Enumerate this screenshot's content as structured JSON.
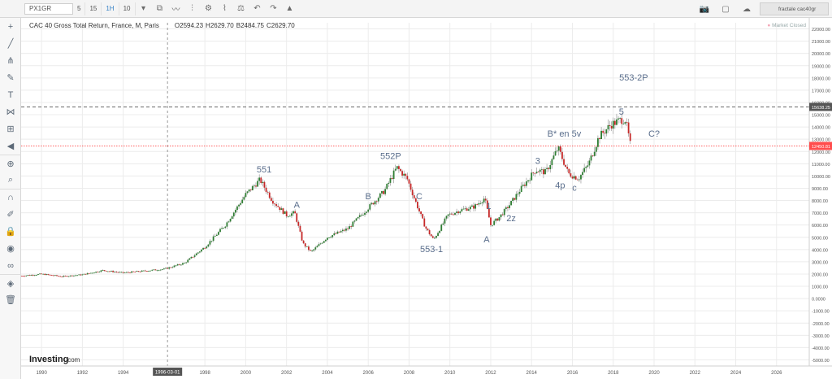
{
  "toolbar": {
    "symbol": "PX1GR",
    "intervals": [
      "5",
      "15",
      "1H",
      "1D"
    ],
    "active_interval": "1H",
    "tick_count": "10",
    "right_user": "fractale cac40gr"
  },
  "legend": {
    "title": "CAC 40 Gross Total Return, France, M, Paris",
    "open": "O2594.23",
    "high": "H2629.70",
    "low": "B2484.75",
    "close": "C2629.70",
    "market_status": "Market Closed"
  },
  "crosshair_label": "1996-03-01",
  "watermark": "Investing",
  "watermark_suffix": ".com",
  "colors": {
    "up": "#2e7d32",
    "down": "#c62828",
    "price_line": "#ff4d4d",
    "grid": "#ececec",
    "annotation": "#5a6e8c"
  },
  "chart_data": {
    "type": "candlestick",
    "x_ticks": [
      "1990",
      "1992",
      "1994",
      "1996-03-01",
      "1998",
      "2000",
      "2002",
      "2004",
      "2006",
      "2008",
      "2010",
      "2012",
      "2014",
      "2016",
      "2018",
      "2020",
      "2022",
      "2024",
      "2026"
    ],
    "ylim": [
      -5500,
      22500
    ],
    "y_ticks": [
      22000,
      21000,
      20000,
      19000,
      18000,
      17000,
      16000,
      15000,
      14000,
      13000,
      12000,
      11000,
      10000,
      9000,
      8000,
      7000,
      6000,
      5000,
      4000,
      3000,
      2000,
      1000,
      0,
      -1000,
      -2000,
      -3000,
      -4000,
      -5000
    ],
    "y_tick_labels": [
      "22000.00",
      "21000.00",
      "20000.00",
      "19000.00",
      "18000.00",
      "17000.00",
      "16000.00",
      "15000.00",
      "14000.00",
      "13000.00",
      "12000.00",
      "11000.00",
      "10000.00",
      "9000.00",
      "8000.00",
      "7000.00",
      "6000.00",
      "5000.00",
      "4000.00",
      "3000.00",
      "2000.00",
      "1000.00",
      "0.0000",
      "-1000.00",
      "-2000.00",
      "-3000.00",
      "-4000.00",
      "-5000.00"
    ],
    "price_markers": [
      {
        "value": 15638.25,
        "label": "15638.25",
        "style": "dashed",
        "color": "#555555"
      },
      {
        "value": 12450.81,
        "label": "12450.81",
        "style": "dotted",
        "color": "#ff4d4d"
      }
    ],
    "price_path": [
      [
        1989.0,
        1850
      ],
      [
        1990.0,
        2000
      ],
      [
        1991.0,
        1800
      ],
      [
        1992.0,
        1950
      ],
      [
        1993.0,
        2300
      ],
      [
        1994.0,
        2100
      ],
      [
        1995.0,
        2250
      ],
      [
        1996.0,
        2400
      ],
      [
        1997.0,
        2900
      ],
      [
        1998.0,
        4200
      ],
      [
        1999.0,
        6000
      ],
      [
        2000.0,
        8500
      ],
      [
        2000.7,
        9700
      ],
      [
        2001.3,
        8000
      ],
      [
        2002.0,
        6800
      ],
      [
        2002.4,
        7000
      ],
      [
        2002.8,
        4500
      ],
      [
        2003.2,
        3800
      ],
      [
        2004.0,
        5000
      ],
      [
        2005.0,
        5700
      ],
      [
        2006.0,
        7400
      ],
      [
        2006.8,
        8800
      ],
      [
        2007.4,
        10700
      ],
      [
        2007.9,
        9800
      ],
      [
        2008.3,
        8000
      ],
      [
        2008.8,
        5800
      ],
      [
        2009.2,
        4800
      ],
      [
        2009.9,
        6800
      ],
      [
        2010.5,
        7200
      ],
      [
        2011.2,
        7500
      ],
      [
        2011.7,
        8200
      ],
      [
        2012.0,
        6000
      ],
      [
        2012.4,
        6600
      ],
      [
        2012.9,
        7600
      ],
      [
        2013.5,
        9000
      ],
      [
        2014.2,
        10500
      ],
      [
        2014.7,
        10300
      ],
      [
        2015.3,
        12300
      ],
      [
        2015.8,
        10200
      ],
      [
        2016.3,
        9800
      ],
      [
        2016.8,
        11000
      ],
      [
        2017.3,
        13200
      ],
      [
        2017.9,
        14200
      ],
      [
        2018.4,
        14600
      ],
      [
        2018.6,
        14600
      ],
      [
        2018.85,
        12450
      ]
    ],
    "annotations": [
      {
        "text": "551",
        "x": 2000.9,
        "y": 10300
      },
      {
        "text": "A",
        "x": 2002.5,
        "y": 7400
      },
      {
        "text": "552P",
        "x": 2007.1,
        "y": 11400
      },
      {
        "text": "B",
        "x": 2006.0,
        "y": 8100
      },
      {
        "text": "C",
        "x": 2008.5,
        "y": 8100
      },
      {
        "text": "553-1",
        "x": 2009.1,
        "y": 3800
      },
      {
        "text": "1",
        "x": 2011.9,
        "y": 7300
      },
      {
        "text": "A",
        "x": 2011.8,
        "y": 4600
      },
      {
        "text": "2z",
        "x": 2013.0,
        "y": 6300
      },
      {
        "text": "3",
        "x": 2014.3,
        "y": 11000
      },
      {
        "text": "4p",
        "x": 2015.4,
        "y": 9000
      },
      {
        "text": "c",
        "x": 2016.1,
        "y": 8800
      },
      {
        "text": "B* en 5v",
        "x": 2015.6,
        "y": 13200
      },
      {
        "text": "5",
        "x": 2018.4,
        "y": 15000
      },
      {
        "text": "553-2P",
        "x": 2019.0,
        "y": 17800
      },
      {
        "text": "C?",
        "x": 2020.0,
        "y": 13200
      }
    ]
  }
}
